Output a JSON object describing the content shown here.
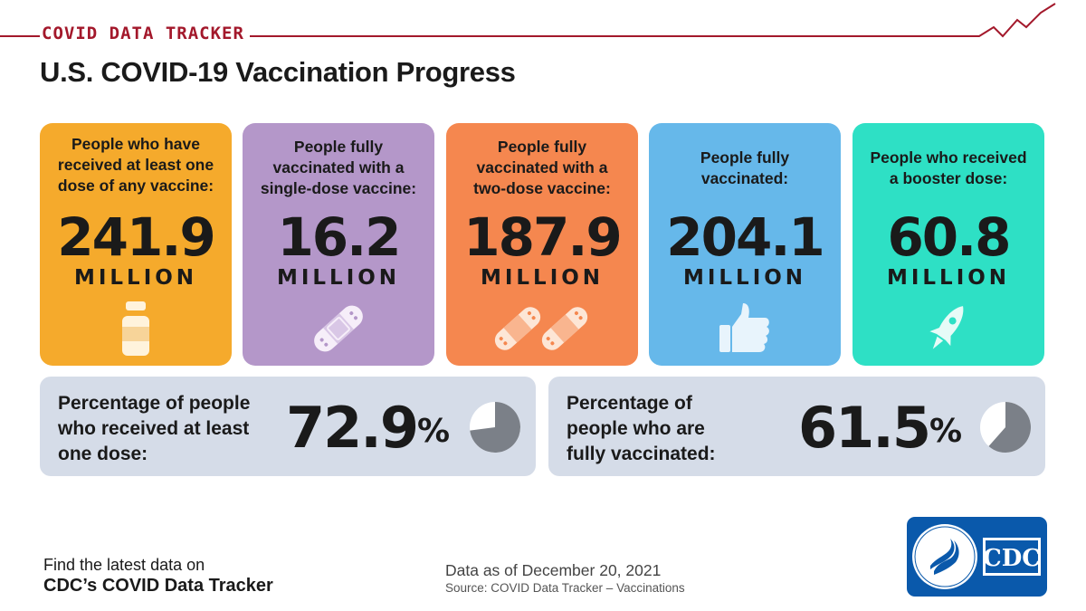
{
  "header": {
    "tracker_label": "COVID DATA TRACKER",
    "title": "U.S. COVID-19 Vaccination Progress",
    "accent_color": "#a3182b"
  },
  "cards": [
    {
      "label_lines": [
        "People who have",
        "received at least one",
        "dose of any vaccine:"
      ],
      "value": "241.9",
      "unit": "MILLION",
      "icon": "vaccine-vial-icon",
      "color": "#f5aa2c"
    },
    {
      "label_lines": [
        "People fully",
        "vaccinated with a",
        "single-dose vaccine:"
      ],
      "value": "16.2",
      "unit": "MILLION",
      "icon": "bandage-icon",
      "color": "#b497c9"
    },
    {
      "label_lines": [
        "People fully",
        "vaccinated with a",
        "two-dose vaccine:"
      ],
      "value": "187.9",
      "unit": "MILLION",
      "icon": "two-bandages-icon",
      "color": "#f5874f"
    },
    {
      "label_lines": [
        "People fully",
        "vaccinated:"
      ],
      "value": "204.1",
      "unit": "MILLION",
      "icon": "thumbs-up-icon",
      "color": "#66b8ea"
    },
    {
      "label_lines": [
        "People who received",
        "a booster dose:"
      ],
      "value": "60.8",
      "unit": "MILLION",
      "icon": "rocket-icon",
      "color": "#2ee0c5"
    }
  ],
  "percentages": [
    {
      "label_lines": [
        "Percentage of people",
        "who received at least",
        "one dose:"
      ],
      "value": "72.9",
      "sign": "%",
      "fraction": 0.729
    },
    {
      "label_lines": [
        "Percentage of",
        "people who are",
        "fully vaccinated:"
      ],
      "value": "61.5",
      "sign": "%",
      "fraction": 0.615
    }
  ],
  "footer": {
    "find_text": "Find the latest data on",
    "link_text": "CDC’s COVID Data Tracker",
    "date_text": "Data as of December 20, 2021",
    "source_text": "Source: COVID Data Tracker – Vaccinations"
  },
  "logo": {
    "text": "CDC",
    "seal_text": "DEPARTMENT OF HEALTH & HUMAN SERVICES USA",
    "color": "#0a59ab"
  }
}
